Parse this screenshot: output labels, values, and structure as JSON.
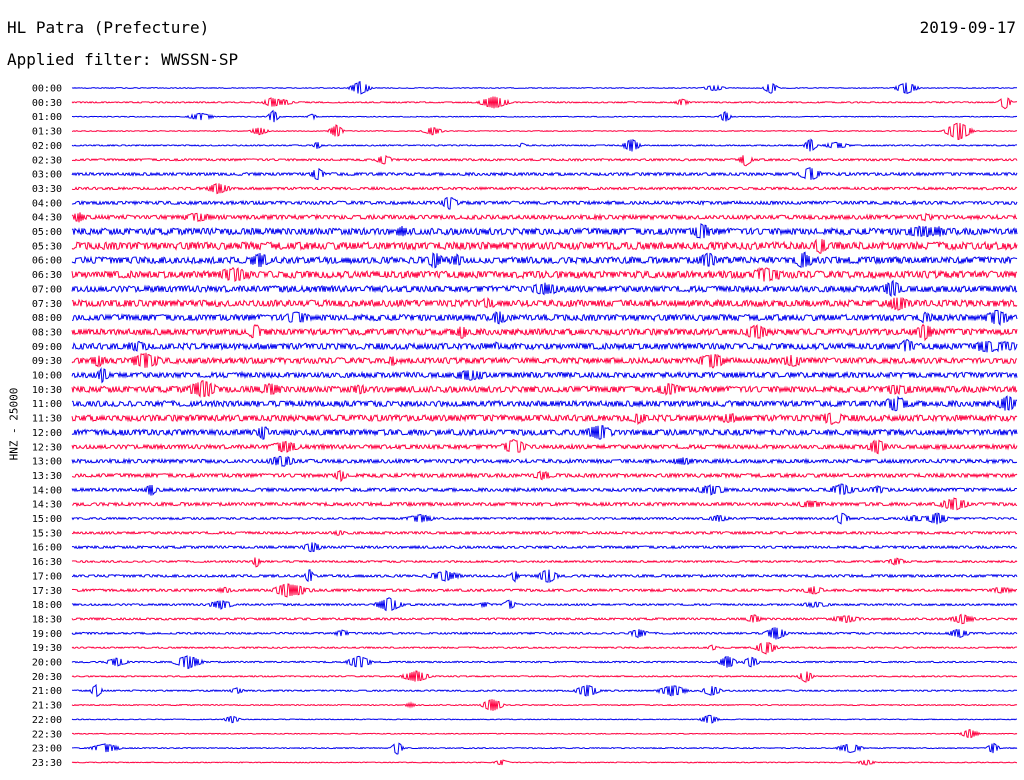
{
  "header": {
    "station": "HL Patra (Prefecture)",
    "date": "2019-09-17",
    "filter": "Applied filter: WWSSN-SP"
  },
  "colors": {
    "even": "#0000ee",
    "odd": "#ff0040"
  },
  "chart_data": {
    "type": "line",
    "title": "HL Patra (Prefecture)",
    "ylabel": "HNZ - 25000",
    "xlabel": "",
    "row_labels": [
      "00:00",
      "00:30",
      "01:00",
      "01:30",
      "02:00",
      "02:30",
      "03:00",
      "03:30",
      "04:00",
      "04:30",
      "05:00",
      "05:30",
      "06:00",
      "06:30",
      "07:00",
      "07:30",
      "08:00",
      "08:30",
      "09:00",
      "09:30",
      "10:00",
      "10:30",
      "11:00",
      "11:30",
      "12:00",
      "12:30",
      "13:00",
      "13:30",
      "14:00",
      "14:30",
      "15:00",
      "15:30",
      "16:00",
      "16:30",
      "17:00",
      "17:30",
      "18:00",
      "18:30",
      "19:00",
      "19:30",
      "20:00",
      "20:30",
      "21:00",
      "21:30",
      "22:00",
      "22:30",
      "23:00",
      "23:30"
    ],
    "relative_noise_amplitude": [
      0.4,
      0.6,
      0.4,
      0.4,
      0.6,
      1.0,
      1.4,
      1.2,
      1.6,
      2.0,
      3.2,
      3.6,
      3.2,
      3.4,
      3.0,
      3.2,
      3.0,
      3.0,
      3.0,
      2.8,
      2.6,
      3.0,
      2.8,
      3.0,
      2.8,
      2.0,
      1.8,
      1.8,
      1.6,
      1.6,
      1.0,
      1.2,
      1.2,
      0.9,
      1.2,
      1.2,
      0.9,
      1.0,
      0.9,
      0.7,
      0.7,
      0.6,
      0.7,
      0.5,
      0.4,
      0.4,
      0.5,
      0.4
    ],
    "grid": false,
    "legend": "none"
  }
}
